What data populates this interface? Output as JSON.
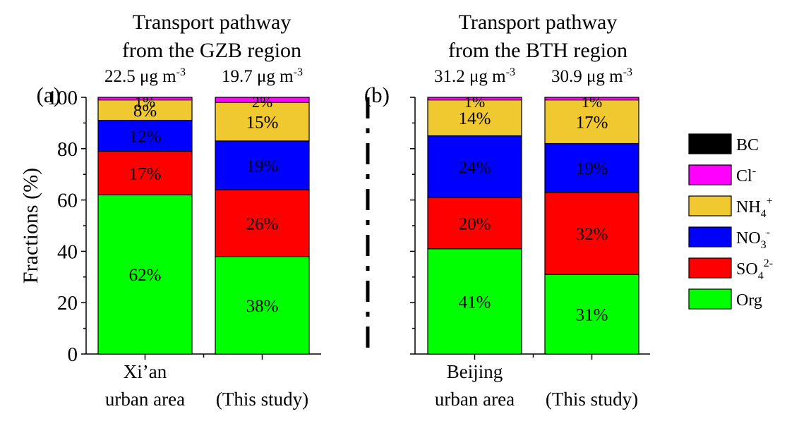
{
  "chart_data": [
    {
      "type": "bar",
      "stacked": true,
      "panel_label": "(a)",
      "title_lines": [
        "Transport pathway",
        "from the GZB region"
      ],
      "ylabel": "Fractions (%)",
      "ylim": [
        0,
        100
      ],
      "yticks": [
        "0",
        "20",
        "40",
        "60",
        "80",
        "100"
      ],
      "categories": [
        {
          "lines": [
            "Xi’an",
            "urban area"
          ],
          "mass": "22.5 μg m",
          "mass_sup": "-3"
        },
        {
          "lines": [
            "",
            "(This study)"
          ],
          "mass": "19.7 μg m",
          "mass_sup": "-3"
        }
      ],
      "series": [
        {
          "key": "org",
          "values": [
            62,
            38
          ],
          "labels": [
            "62%",
            "38%"
          ]
        },
        {
          "key": "so4",
          "values": [
            17,
            26
          ],
          "labels": [
            "17%",
            "26%"
          ]
        },
        {
          "key": "no3",
          "values": [
            12,
            19
          ],
          "labels": [
            "12%",
            "19%"
          ]
        },
        {
          "key": "nh4",
          "values": [
            8,
            15
          ],
          "labels": [
            "8%",
            "15%"
          ]
        },
        {
          "key": "cl",
          "values": [
            1,
            2
          ],
          "labels": [
            "1%",
            "2%"
          ]
        }
      ]
    },
    {
      "type": "bar",
      "stacked": true,
      "panel_label": "(b)",
      "title_lines": [
        "Transport pathway",
        "from the BTH region"
      ],
      "ylim": [
        0,
        100
      ],
      "categories": [
        {
          "lines": [
            "Beijing",
            "urban area"
          ],
          "mass": "31.2 μg m",
          "mass_sup": "-3"
        },
        {
          "lines": [
            "",
            "(This study)"
          ],
          "mass": "30.9 μg m",
          "mass_sup": "-3"
        }
      ],
      "series": [
        {
          "key": "org",
          "values": [
            41,
            31
          ],
          "labels": [
            "41%",
            "31%"
          ]
        },
        {
          "key": "so4",
          "values": [
            20,
            32
          ],
          "labels": [
            "20%",
            "32%"
          ]
        },
        {
          "key": "no3",
          "values": [
            24,
            19
          ],
          "labels": [
            "24%",
            "19%"
          ]
        },
        {
          "key": "nh4",
          "values": [
            14,
            17
          ],
          "labels": [
            "14%",
            "17%"
          ]
        },
        {
          "key": "cl",
          "values": [
            1,
            1
          ],
          "labels": [
            "1%",
            "1%"
          ]
        }
      ]
    }
  ],
  "legend": [
    {
      "key": "bc",
      "base": "BC",
      "sub": "",
      "sup": "",
      "color": "#000000"
    },
    {
      "key": "cl",
      "base": "Cl",
      "sub": "",
      "sup": "-",
      "color": "#ff00ff"
    },
    {
      "key": "nh4",
      "base": "NH",
      "sub": "4",
      "sup": "+",
      "color": "#f0c830"
    },
    {
      "key": "no3",
      "base": "NO",
      "sub": "3",
      "sup": "-",
      "color": "#0000ff"
    },
    {
      "key": "so4",
      "base": "SO",
      "sub": "4",
      "sup": "2-",
      "color": "#ff0000"
    },
    {
      "key": "org",
      "base": "Org",
      "sub": "",
      "sup": "",
      "color": "#00ff00"
    }
  ],
  "label_colors": {
    "org": "#000000",
    "so4": "#ffffff",
    "no3": "#ffffff",
    "nh4": "#000000",
    "cl": "#ffffff"
  }
}
